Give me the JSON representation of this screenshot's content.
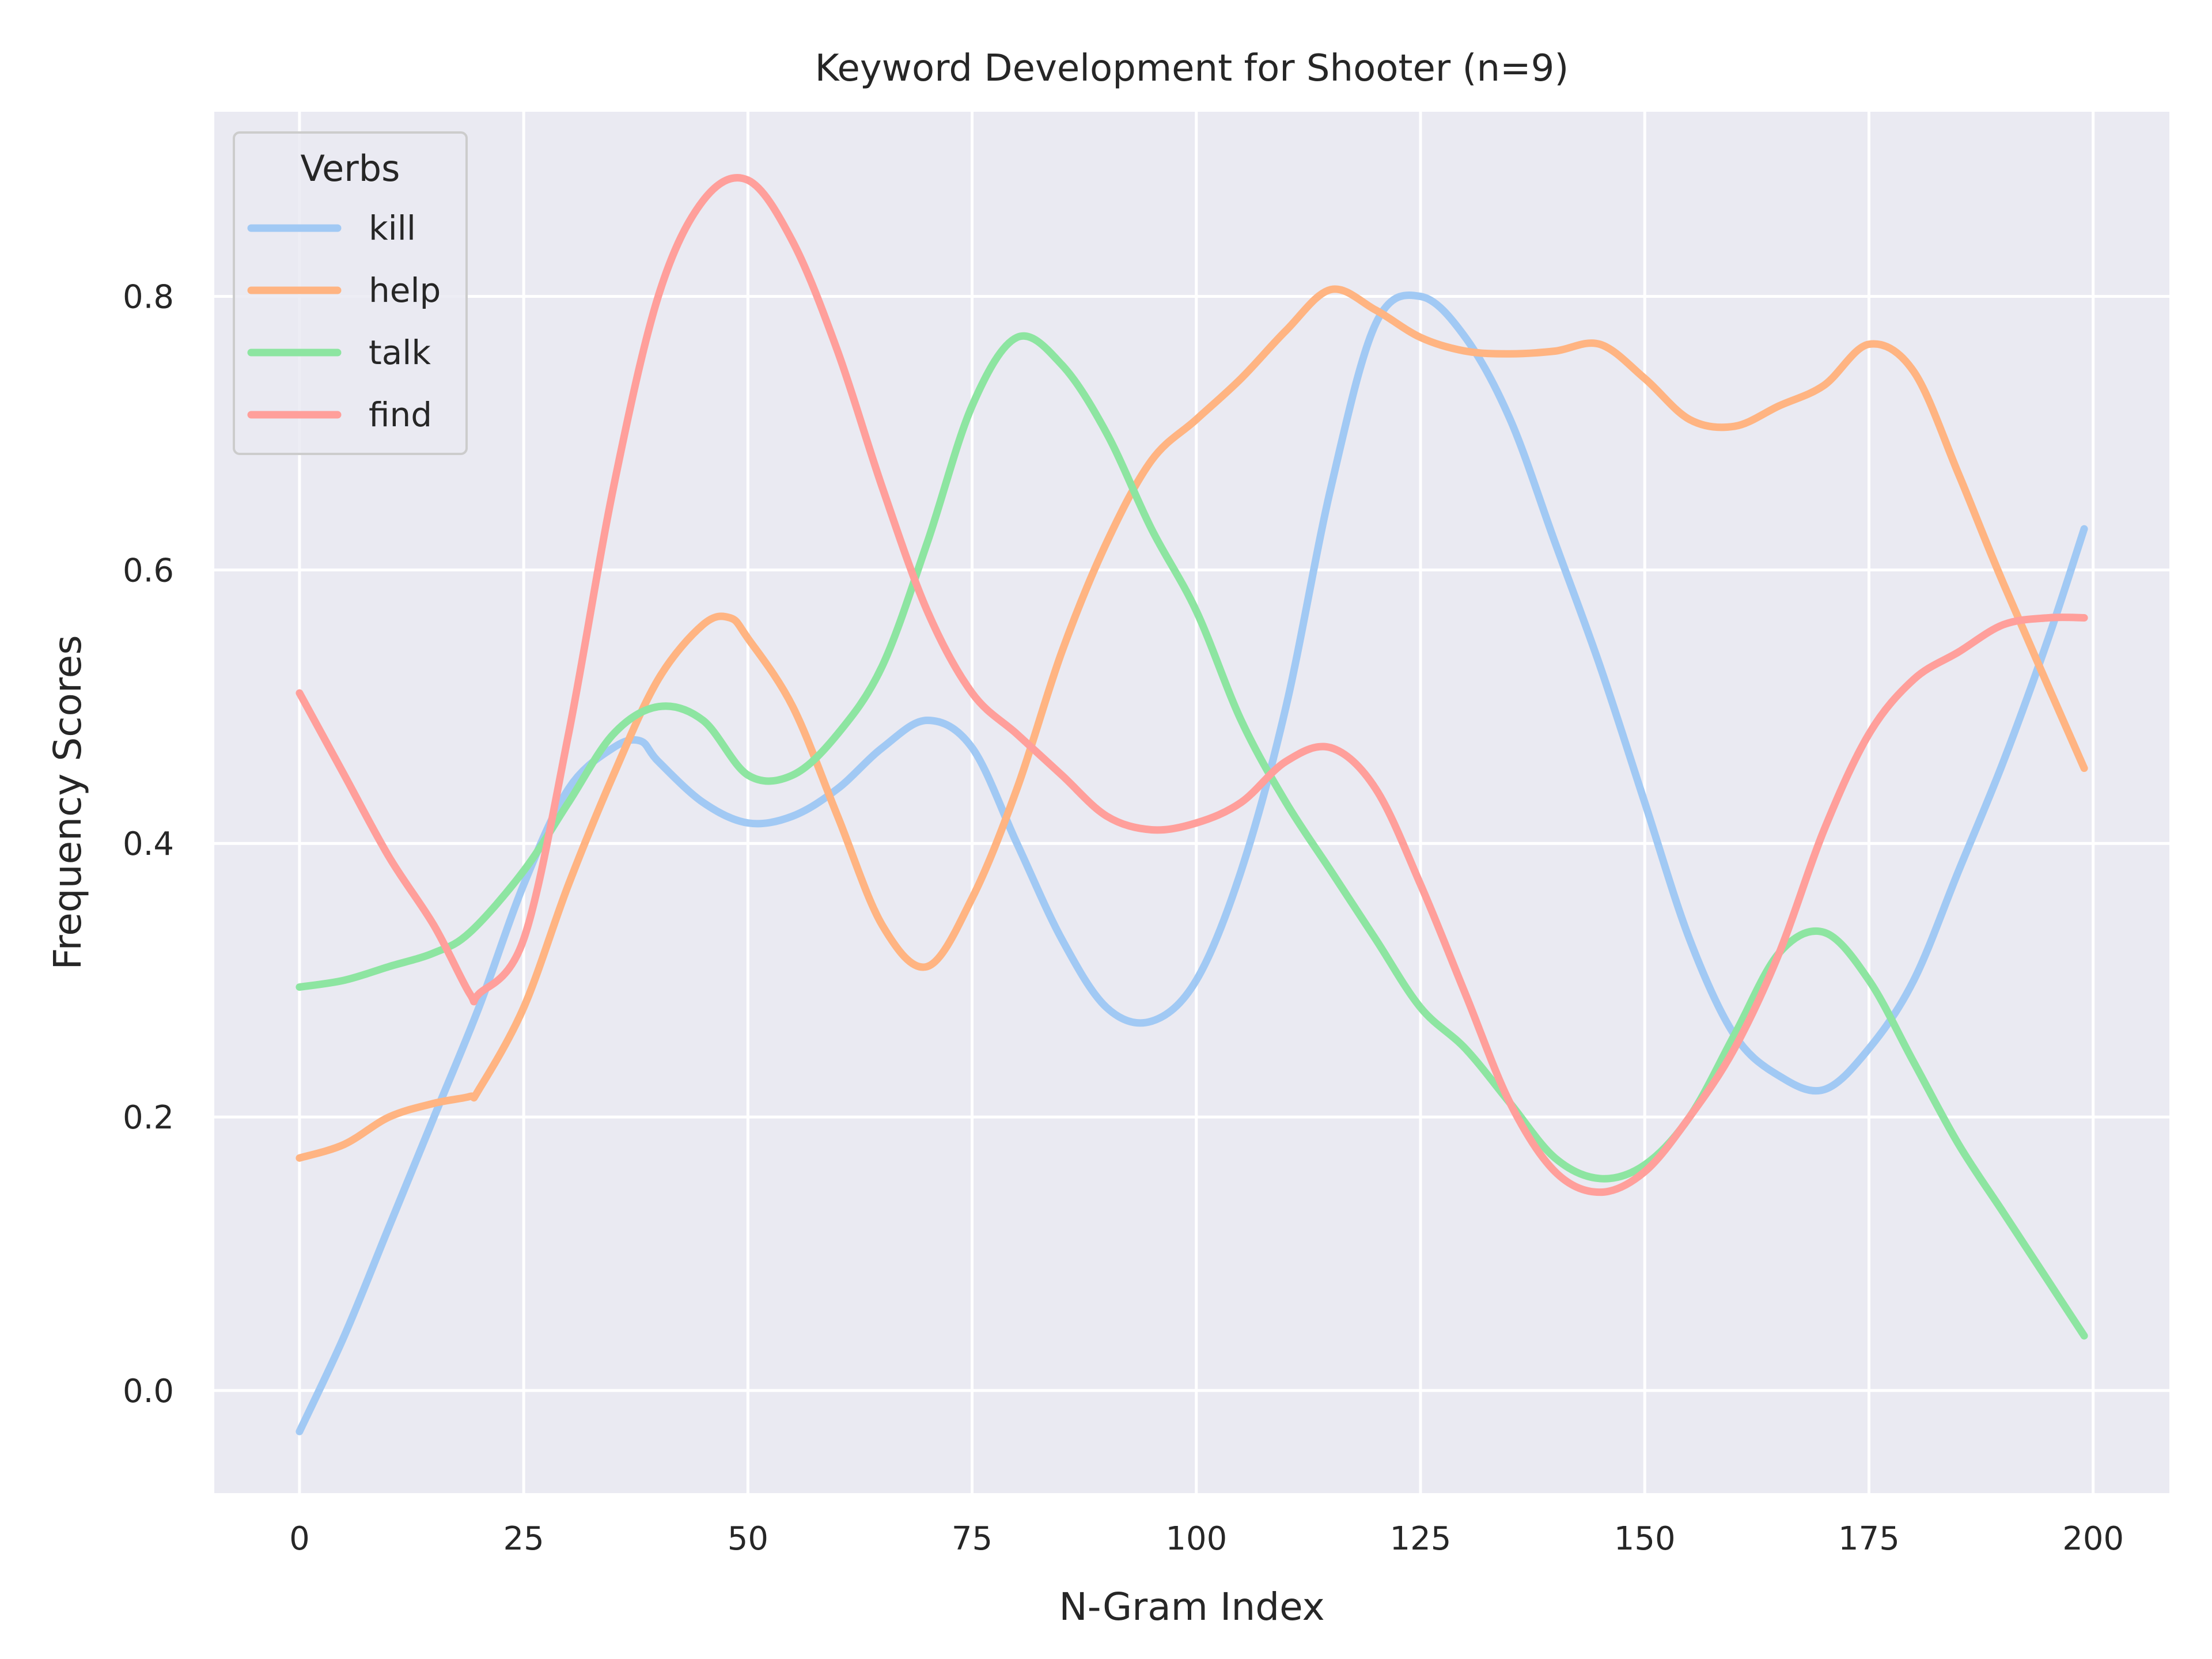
{
  "chart_data": {
    "type": "line",
    "title": "Keyword Development for Shooter (n=9)",
    "xlabel": "N-Gram Index",
    "ylabel": "Frequency Scores",
    "xlim": [
      -9.5,
      208.5
    ],
    "ylim": [
      -0.075,
      0.935
    ],
    "xticks": [
      0,
      25,
      50,
      75,
      100,
      125,
      150,
      175,
      200
    ],
    "yticks": [
      0.0,
      0.2,
      0.4,
      0.6,
      0.8
    ],
    "xtick_labels": [
      "0",
      "25",
      "50",
      "75",
      "100",
      "125",
      "150",
      "175",
      "200"
    ],
    "ytick_labels": [
      "0.0",
      "0.2",
      "0.4",
      "0.6",
      "0.8"
    ],
    "grid": true,
    "background": "#eaeaf2",
    "legend": {
      "title": "Verbs",
      "position": "top-left"
    },
    "series": [
      {
        "name": "kill",
        "color": "#a1c9f4",
        "x": [
          0,
          5,
          10,
          15,
          20,
          25,
          30,
          35,
          38,
          40,
          45,
          50,
          55,
          60,
          65,
          70,
          75,
          80,
          85,
          90,
          95,
          100,
          105,
          110,
          115,
          120,
          125,
          130,
          135,
          140,
          145,
          150,
          155,
          160,
          165,
          170,
          175,
          180,
          185,
          190,
          195,
          199
        ],
        "y": [
          -0.03,
          0.04,
          0.12,
          0.2,
          0.28,
          0.37,
          0.44,
          0.47,
          0.475,
          0.46,
          0.43,
          0.415,
          0.42,
          0.44,
          0.47,
          0.49,
          0.47,
          0.4,
          0.33,
          0.28,
          0.27,
          0.3,
          0.38,
          0.5,
          0.66,
          0.78,
          0.8,
          0.77,
          0.71,
          0.62,
          0.53,
          0.43,
          0.33,
          0.26,
          0.23,
          0.22,
          0.25,
          0.3,
          0.38,
          0.46,
          0.55,
          0.63
        ]
      },
      {
        "name": "help",
        "color": "#ffb482",
        "x": [
          0,
          5,
          10,
          15,
          19,
          20,
          25,
          30,
          35,
          40,
          45,
          48,
          50,
          55,
          60,
          65,
          70,
          75,
          80,
          85,
          90,
          95,
          100,
          105,
          110,
          115,
          120,
          125,
          130,
          135,
          140,
          145,
          150,
          155,
          160,
          165,
          170,
          175,
          180,
          185,
          190,
          199
        ],
        "y": [
          0.17,
          0.18,
          0.2,
          0.21,
          0.215,
          0.22,
          0.28,
          0.37,
          0.45,
          0.52,
          0.56,
          0.565,
          0.55,
          0.5,
          0.42,
          0.34,
          0.31,
          0.36,
          0.44,
          0.54,
          0.62,
          0.68,
          0.71,
          0.74,
          0.775,
          0.805,
          0.79,
          0.77,
          0.76,
          0.758,
          0.76,
          0.765,
          0.74,
          0.71,
          0.705,
          0.72,
          0.735,
          0.765,
          0.745,
          0.67,
          0.59,
          0.455
        ]
      },
      {
        "name": "talk",
        "color": "#8de5a1",
        "x": [
          0,
          5,
          10,
          15,
          19,
          25,
          30,
          35,
          40,
          45,
          50,
          55,
          60,
          65,
          70,
          75,
          80,
          85,
          90,
          95,
          100,
          105,
          110,
          115,
          120,
          125,
          130,
          135,
          140,
          145,
          150,
          155,
          160,
          165,
          170,
          175,
          180,
          185,
          190,
          195,
          199
        ],
        "y": [
          0.295,
          0.3,
          0.31,
          0.32,
          0.335,
          0.38,
          0.43,
          0.48,
          0.5,
          0.49,
          0.45,
          0.45,
          0.48,
          0.53,
          0.62,
          0.72,
          0.77,
          0.75,
          0.7,
          0.63,
          0.57,
          0.49,
          0.43,
          0.38,
          0.33,
          0.28,
          0.25,
          0.21,
          0.17,
          0.155,
          0.165,
          0.2,
          0.26,
          0.32,
          0.335,
          0.3,
          0.24,
          0.18,
          0.13,
          0.08,
          0.04
        ]
      },
      {
        "name": "find",
        "color": "#ff9f9b",
        "x": [
          0,
          5,
          10,
          15,
          19,
          20,
          25,
          30,
          35,
          40,
          45,
          50,
          55,
          60,
          65,
          70,
          75,
          80,
          85,
          90,
          95,
          100,
          105,
          110,
          115,
          120,
          125,
          130,
          135,
          140,
          145,
          150,
          155,
          160,
          165,
          170,
          175,
          180,
          185,
          190,
          195,
          199
        ],
        "y": [
          0.51,
          0.45,
          0.39,
          0.34,
          0.29,
          0.29,
          0.33,
          0.48,
          0.66,
          0.8,
          0.87,
          0.885,
          0.84,
          0.76,
          0.66,
          0.57,
          0.51,
          0.48,
          0.45,
          0.42,
          0.41,
          0.415,
          0.43,
          0.46,
          0.47,
          0.44,
          0.37,
          0.29,
          0.21,
          0.16,
          0.145,
          0.16,
          0.2,
          0.25,
          0.32,
          0.41,
          0.48,
          0.52,
          0.54,
          0.56,
          0.565,
          0.565
        ]
      }
    ]
  }
}
